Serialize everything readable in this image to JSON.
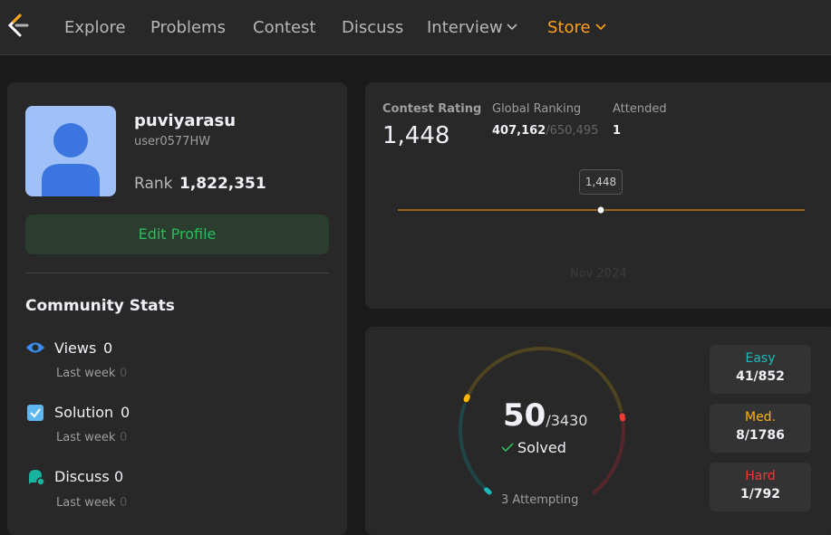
{
  "nav": {
    "items": [
      "Explore",
      "Problems",
      "Contest",
      "Discuss",
      "Interview",
      "Store"
    ]
  },
  "profile": {
    "name": "puviyarasu",
    "username": "user0577HW",
    "rank_label": "Rank",
    "rank": "1,822,351",
    "edit": "Edit Profile"
  },
  "community": {
    "title": "Community Stats",
    "items": [
      {
        "label": "Views",
        "value": "0",
        "sub_label": "Last week",
        "sub_value": "0"
      },
      {
        "label": "Solution",
        "value": "0",
        "sub_label": "Last week",
        "sub_value": "0"
      },
      {
        "label": "Discuss",
        "value": "0",
        "sub_label": "Last week",
        "sub_value": "0"
      }
    ]
  },
  "contest": {
    "rating_label": "Contest Rating",
    "rating": "1,448",
    "ranking_label": "Global Ranking",
    "ranking": "407,162",
    "ranking_total": "/650,495",
    "attended_label": "Attended",
    "attended": "1",
    "tooltip": "1,448",
    "date": "Nov 2024"
  },
  "solved": {
    "count": "50",
    "total": "/3430",
    "solved_label": "Solved",
    "attempting": "3 Attempting",
    "levels": [
      {
        "name": "Easy",
        "value": "41/852"
      },
      {
        "name": "Med.",
        "value": "8/1786"
      },
      {
        "name": "Hard",
        "value": "1/792"
      }
    ]
  }
}
